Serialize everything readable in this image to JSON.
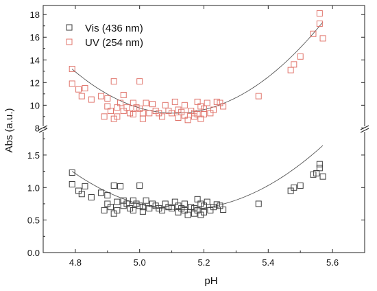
{
  "chart_data": {
    "type": "scatter",
    "xlabel": "pH",
    "ylabel": "Abs (a.u.)",
    "xlim": [
      4.7,
      5.7
    ],
    "ylim_lower": [
      0.0,
      1.9
    ],
    "ylim_upper": [
      7.9,
      18.8
    ],
    "axis_break": true,
    "x_ticks": [
      "4.8",
      "5.0",
      "5.2",
      "5.4",
      "5.6"
    ],
    "y_ticks_lower": [
      "0.0",
      "0.5",
      "1.0",
      "1.5"
    ],
    "y_ticks_upper": [
      "8",
      "10",
      "12",
      "14",
      "16",
      "18"
    ],
    "legend_position": "top-left",
    "colors": {
      "vis": "#3a3a3a",
      "uv": "#e0736a",
      "fit": "#555555"
    },
    "series": [
      {
        "name": "Vis (436 nm)",
        "panel": "lower",
        "points": [
          [
            4.79,
            1.23
          ],
          [
            4.79,
            1.05
          ],
          [
            4.81,
            0.95
          ],
          [
            4.82,
            0.9
          ],
          [
            4.83,
            1.02
          ],
          [
            4.85,
            0.85
          ],
          [
            4.88,
            0.92
          ],
          [
            4.89,
            0.65
          ],
          [
            4.9,
            0.88
          ],
          [
            4.9,
            0.75
          ],
          [
            4.91,
            0.7
          ],
          [
            4.92,
            0.6
          ],
          [
            4.92,
            1.03
          ],
          [
            4.93,
            0.65
          ],
          [
            4.93,
            0.78
          ],
          [
            4.94,
            1.02
          ],
          [
            4.95,
            0.72
          ],
          [
            4.95,
            0.8
          ],
          [
            4.96,
            0.75
          ],
          [
            4.97,
            0.68
          ],
          [
            4.98,
            0.8
          ],
          [
            4.98,
            0.65
          ],
          [
            4.99,
            0.75
          ],
          [
            5.0,
            1.03
          ],
          [
            5.0,
            0.72
          ],
          [
            5.01,
            0.63
          ],
          [
            5.01,
            0.7
          ],
          [
            5.02,
            0.8
          ],
          [
            5.03,
            0.68
          ],
          [
            5.04,
            0.75
          ],
          [
            5.05,
            0.72
          ],
          [
            5.06,
            0.68
          ],
          [
            5.07,
            0.65
          ],
          [
            5.08,
            0.75
          ],
          [
            5.09,
            0.7
          ],
          [
            5.1,
            0.68
          ],
          [
            5.11,
            0.78
          ],
          [
            5.12,
            0.72
          ],
          [
            5.12,
            0.62
          ],
          [
            5.13,
            0.68
          ],
          [
            5.14,
            0.75
          ],
          [
            5.14,
            0.65
          ],
          [
            5.15,
            0.58
          ],
          [
            5.16,
            0.7
          ],
          [
            5.17,
            0.68
          ],
          [
            5.17,
            0.6
          ],
          [
            5.18,
            0.82
          ],
          [
            5.18,
            0.65
          ],
          [
            5.19,
            0.58
          ],
          [
            5.19,
            0.75
          ],
          [
            5.2,
            0.72
          ],
          [
            5.2,
            0.62
          ],
          [
            5.21,
            0.78
          ],
          [
            5.22,
            0.65
          ],
          [
            5.23,
            0.7
          ],
          [
            5.24,
            0.74
          ],
          [
            5.25,
            0.72
          ],
          [
            5.26,
            0.66
          ],
          [
            5.37,
            0.75
          ],
          [
            5.47,
            0.95
          ],
          [
            5.48,
            1.0
          ],
          [
            5.5,
            1.03
          ],
          [
            5.54,
            1.2
          ],
          [
            5.55,
            1.22
          ],
          [
            5.56,
            1.36
          ],
          [
            5.56,
            1.3
          ],
          [
            5.57,
            1.17
          ]
        ]
      },
      {
        "name": "UV (254 nm)",
        "panel": "upper",
        "points": [
          [
            4.79,
            13.2
          ],
          [
            4.79,
            11.9
          ],
          [
            4.81,
            11.4
          ],
          [
            4.82,
            10.8
          ],
          [
            4.83,
            11.5
          ],
          [
            4.85,
            10.5
          ],
          [
            4.88,
            10.8
          ],
          [
            4.89,
            9.0
          ],
          [
            4.9,
            10.6
          ],
          [
            4.9,
            9.9
          ],
          [
            4.91,
            9.5
          ],
          [
            4.92,
            8.8
          ],
          [
            4.92,
            12.1
          ],
          [
            4.93,
            9.0
          ],
          [
            4.93,
            9.8
          ],
          [
            4.94,
            10.2
          ],
          [
            4.95,
            9.5
          ],
          [
            4.95,
            10.9
          ],
          [
            4.96,
            9.8
          ],
          [
            4.97,
            9.3
          ],
          [
            4.98,
            10.2
          ],
          [
            4.98,
            9.2
          ],
          [
            4.99,
            9.8
          ],
          [
            5.0,
            12.1
          ],
          [
            5.0,
            9.7
          ],
          [
            5.01,
            8.8
          ],
          [
            5.01,
            9.3
          ],
          [
            5.02,
            10.2
          ],
          [
            5.03,
            9.3
          ],
          [
            5.04,
            10.1
          ],
          [
            5.05,
            9.5
          ],
          [
            5.06,
            9.3
          ],
          [
            5.07,
            9.0
          ],
          [
            5.08,
            10.0
          ],
          [
            5.09,
            9.5
          ],
          [
            5.1,
            9.3
          ],
          [
            5.11,
            10.3
          ],
          [
            5.12,
            9.6
          ],
          [
            5.12,
            8.9
          ],
          [
            5.13,
            9.4
          ],
          [
            5.14,
            10.0
          ],
          [
            5.14,
            9.1
          ],
          [
            5.15,
            8.7
          ],
          [
            5.16,
            9.5
          ],
          [
            5.17,
            9.3
          ],
          [
            5.17,
            9.0
          ],
          [
            5.18,
            10.3
          ],
          [
            5.18,
            9.2
          ],
          [
            5.19,
            8.8
          ],
          [
            5.19,
            9.9
          ],
          [
            5.2,
            9.7
          ],
          [
            5.2,
            9.2
          ],
          [
            5.21,
            10.2
          ],
          [
            5.22,
            9.3
          ],
          [
            5.23,
            9.6
          ],
          [
            5.24,
            10.3
          ],
          [
            5.25,
            10.2
          ],
          [
            5.26,
            9.9
          ],
          [
            5.37,
            10.8
          ],
          [
            5.47,
            13.1
          ],
          [
            5.48,
            13.6
          ],
          [
            5.5,
            14.3
          ],
          [
            5.54,
            16.3
          ],
          [
            5.56,
            18.1
          ],
          [
            5.56,
            17.2
          ],
          [
            5.57,
            15.9
          ]
        ]
      }
    ],
    "fits": [
      {
        "series": "Vis (436 nm)",
        "panel": "lower",
        "vertex_x": 5.13,
        "min_y": 0.66,
        "coef": 5.1,
        "x_range": [
          4.79,
          5.57
        ]
      },
      {
        "series": "UV (254 nm)",
        "panel": "upper",
        "vertex_x": 5.11,
        "min_y": 9.3,
        "coef": 38.0,
        "x_range": [
          4.79,
          5.57
        ]
      }
    ]
  }
}
